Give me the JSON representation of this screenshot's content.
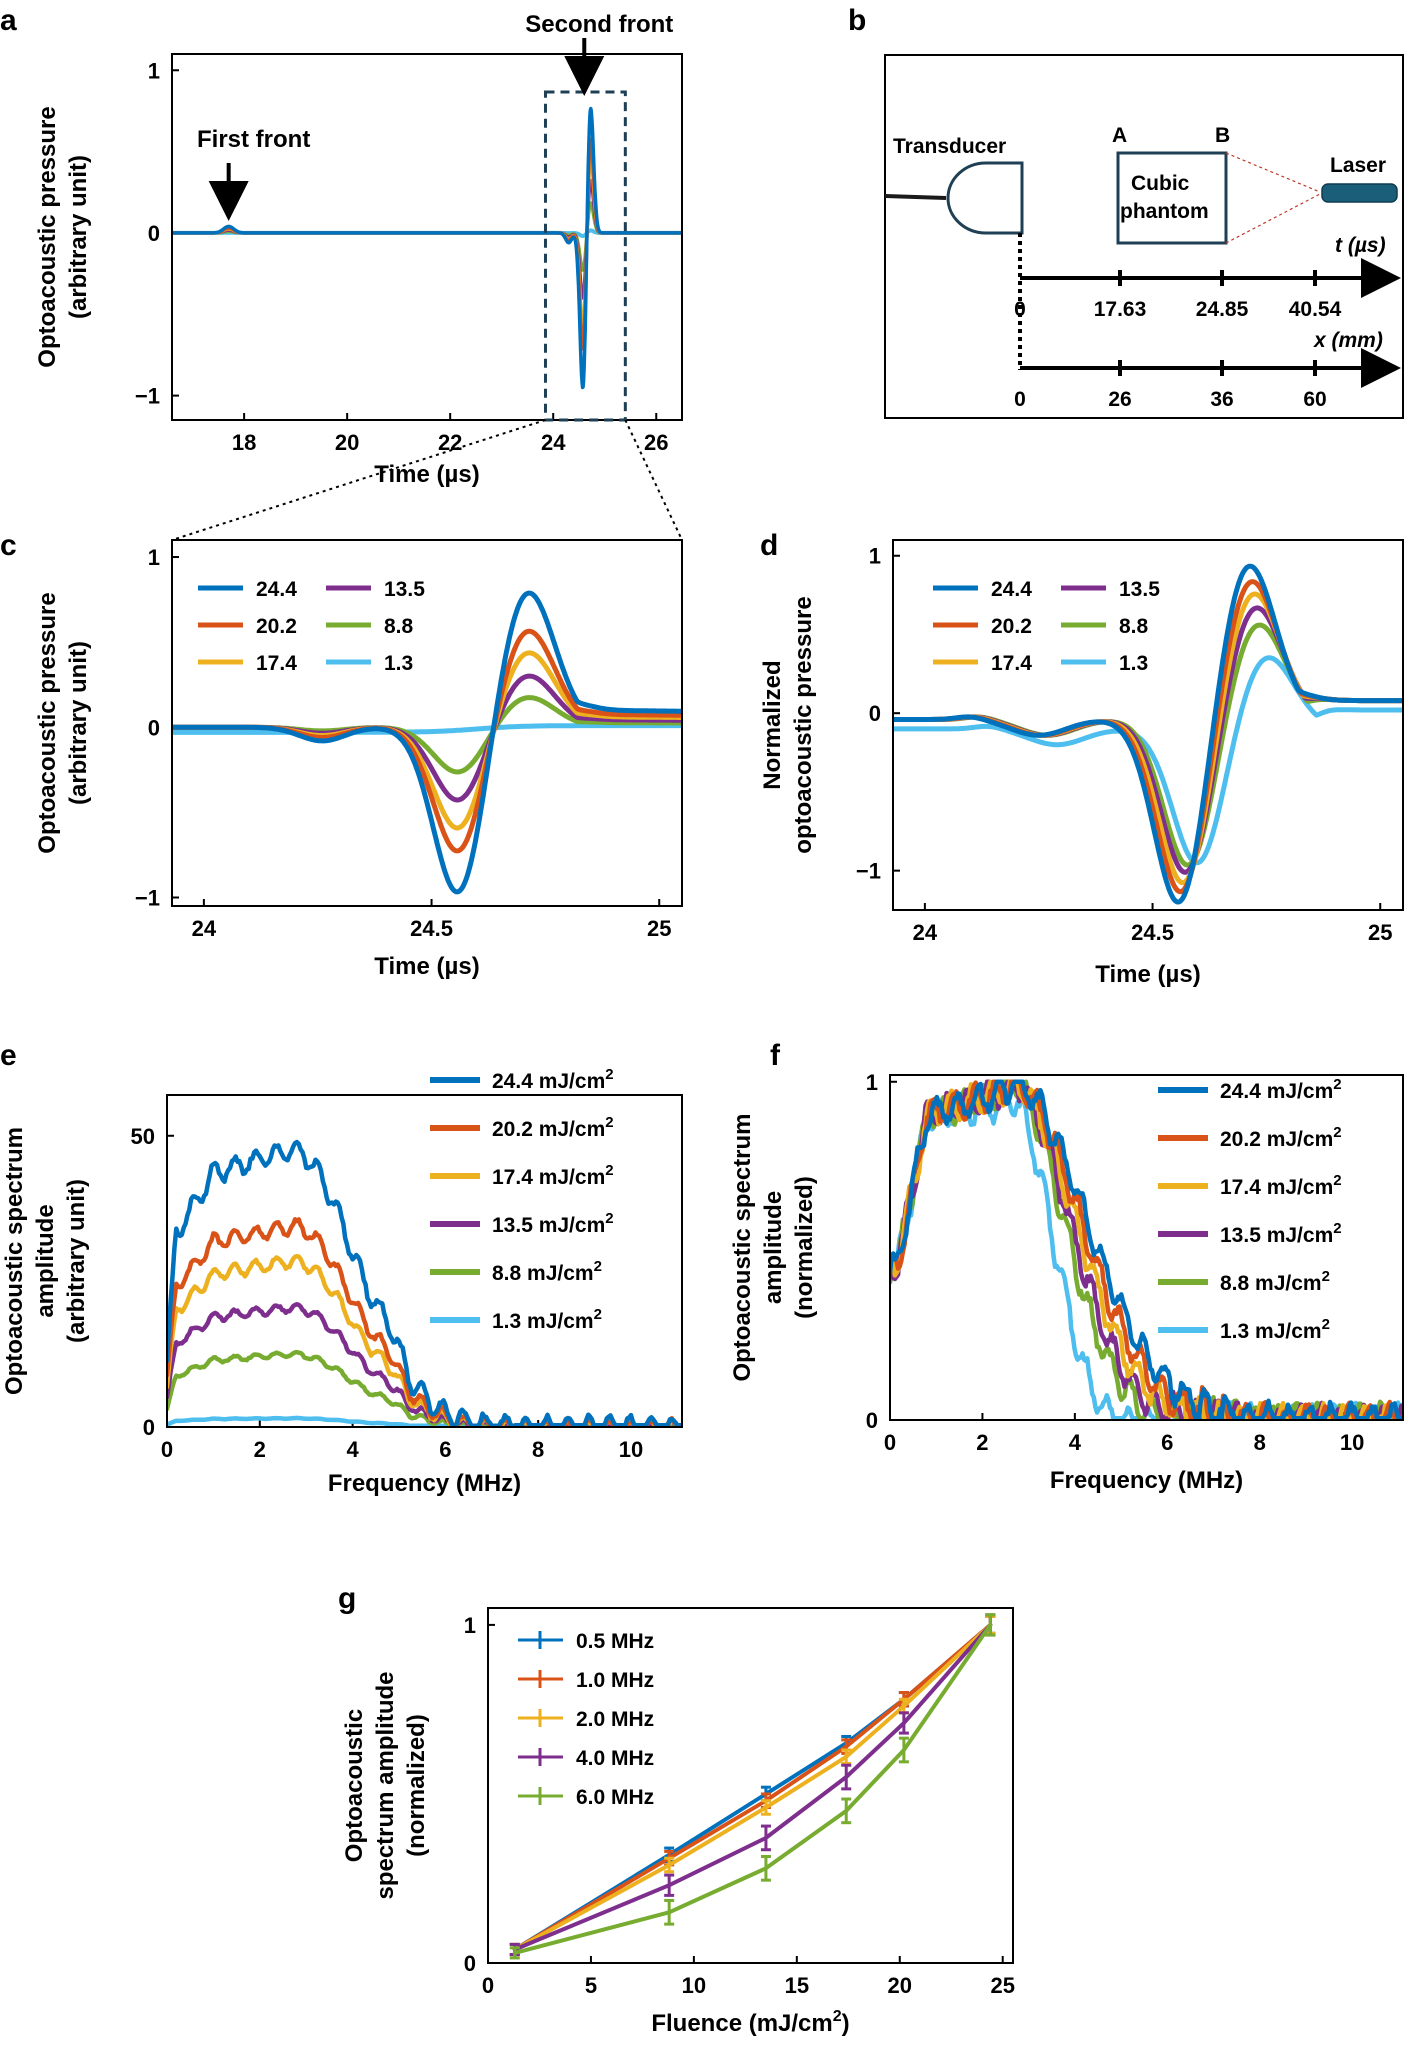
{
  "colors": {
    "c1": "#0072BD",
    "c2": "#D95319",
    "c3": "#EDB120",
    "c4": "#7E2F8E",
    "c5": "#77AC30",
    "c6": "#4DBEEE",
    "frame": "#000000",
    "inset": "#1f3f55"
  },
  "chart_data": [
    {
      "id": "a",
      "type": "line",
      "panel_label": "a",
      "xlabel": "Time (µs)",
      "ylabel_lines": [
        "Optoacoustic pressure",
        "(arbitrary unit)"
      ],
      "xlim": [
        16.6,
        26.5
      ],
      "ylim": [
        -1.15,
        1.1
      ],
      "xticks": [
        18,
        20,
        22,
        24,
        26
      ],
      "yticks": [
        {
          "v": 1,
          "label": "1"
        },
        {
          "v": 0,
          "label": "0"
        },
        {
          "v": -1,
          "label": "−1"
        }
      ],
      "annotations": [
        {
          "text": "First front",
          "x": 17.7
        },
        {
          "text": "Second front",
          "x": 24.7
        }
      ],
      "inset_x": [
        23.85,
        25.4
      ],
      "series": [
        {
          "name": "24.4",
          "amp": 1.0
        },
        {
          "name": "20.2",
          "amp": 0.75
        },
        {
          "name": "17.4",
          "amp": 0.61
        },
        {
          "name": "13.5",
          "amp": 0.42
        },
        {
          "name": "8.8",
          "amp": 0.24
        },
        {
          "name": "1.3",
          "amp": 0.02
        }
      ]
    },
    {
      "id": "c",
      "type": "line",
      "panel_label": "c",
      "xlabel": "Time (µs)",
      "ylabel_lines": [
        "Optoacoustic pressure",
        "(arbitrary unit)"
      ],
      "xlim": [
        23.93,
        25.05
      ],
      "ylim": [
        -1.05,
        1.1
      ],
      "xticks": [
        {
          "v": 24,
          "label": "24"
        },
        {
          "v": 24.5,
          "label": "24.5"
        },
        {
          "v": 25,
          "label": "25"
        }
      ],
      "yticks": [
        {
          "v": 1,
          "label": "1"
        },
        {
          "v": 0,
          "label": "0"
        },
        {
          "v": -1,
          "label": "−1"
        }
      ],
      "legend": [
        "24.4",
        "20.2",
        "17.4",
        "13.5",
        "8.8",
        "1.3"
      ],
      "series": [
        {
          "name": "24.4",
          "amp": 1.0,
          "peak": 0.81
        },
        {
          "name": "20.2",
          "amp": 0.75,
          "peak": 0.58
        },
        {
          "name": "17.4",
          "amp": 0.61,
          "peak": 0.45
        },
        {
          "name": "13.5",
          "amp": 0.44,
          "peak": 0.31
        },
        {
          "name": "8.8",
          "amp": 0.27,
          "peak": 0.18
        },
        {
          "name": "1.3",
          "amp": 0.02,
          "peak": 0.01
        }
      ]
    },
    {
      "id": "d",
      "type": "line",
      "panel_label": "d",
      "xlabel": "Time (µs)",
      "ylabel_lines": [
        "Normalized",
        "optoacoustic pressure"
      ],
      "xlim": [
        23.93,
        25.05
      ],
      "ylim": [
        -1.25,
        1.1
      ],
      "xticks": [
        {
          "v": 24,
          "label": "24"
        },
        {
          "v": 24.5,
          "label": "24.5"
        },
        {
          "v": 25,
          "label": "25"
        }
      ],
      "yticks": [
        {
          "v": 1,
          "label": "1"
        },
        {
          "v": 0,
          "label": "0"
        },
        {
          "v": -1,
          "label": "−1"
        }
      ],
      "legend": [
        "24.4",
        "20.2",
        "17.4",
        "13.5",
        "8.8",
        "1.3"
      ],
      "series": [
        {
          "name": "24.4",
          "trough": -1.2,
          "peak": 1.0,
          "shift": 0.0
        },
        {
          "name": "20.2",
          "trough": -1.13,
          "peak": 0.9,
          "shift": 0.005
        },
        {
          "name": "17.4",
          "trough": -1.07,
          "peak": 0.82,
          "shift": 0.01
        },
        {
          "name": "13.5",
          "trough": -1.0,
          "peak": 0.73,
          "shift": 0.015
        },
        {
          "name": "8.8",
          "trough": -0.95,
          "peak": 0.62,
          "shift": 0.02
        },
        {
          "name": "1.3",
          "trough": -0.87,
          "peak": 0.47,
          "shift": 0.04
        }
      ]
    },
    {
      "id": "e",
      "type": "line",
      "panel_label": "e",
      "xlabel": "Frequency (MHz)",
      "ylabel_lines": [
        "Optoacoustic spectrum",
        "amplitude",
        "(arbitrary unit)"
      ],
      "xlim": [
        0,
        11.1
      ],
      "ylim": [
        0,
        57
      ],
      "xticks": [
        0,
        2,
        4,
        6,
        8,
        10
      ],
      "yticks": [
        {
          "v": 0,
          "label": "0"
        },
        {
          "v": 50,
          "label": "50"
        }
      ],
      "legend_prefix": [
        "24.4 mJ/cm",
        "20.2 mJ/cm",
        "17.4 mJ/cm",
        "13.5 mJ/cm",
        "8.8 mJ/cm",
        "1.3 mJ/cm"
      ],
      "superscript": "2",
      "series": [
        {
          "name": "24.4 mJ/cm2",
          "peak": 47.5
        },
        {
          "name": "20.2 mJ/cm2",
          "peak": 34.5
        },
        {
          "name": "17.4 mJ/cm2",
          "peak": 28.5
        },
        {
          "name": "13.5 mJ/cm2",
          "peak": 20.5
        },
        {
          "name": "8.8 mJ/cm2",
          "peak": 12.5
        },
        {
          "name": "1.3 mJ/cm2",
          "peak": 1.5
        }
      ]
    },
    {
      "id": "f",
      "type": "line",
      "panel_label": "f",
      "xlabel": "Frequency (MHz)",
      "ylabel_lines": [
        "Optoacoustic spectrum",
        "amplitude",
        "(normalized)"
      ],
      "xlim": [
        0,
        11.1
      ],
      "ylim": [
        0,
        1.02
      ],
      "xticks": [
        0,
        2,
        4,
        6,
        8,
        10
      ],
      "yticks": [
        {
          "v": 0,
          "label": "0"
        },
        {
          "v": 1,
          "label": "1"
        }
      ],
      "legend_prefix": [
        "24.4 mJ/cm",
        "20.2 mJ/cm",
        "17.4 mJ/cm",
        "13.5 mJ/cm",
        "8.8 mJ/cm",
        "1.3 mJ/cm"
      ],
      "superscript": "2",
      "series": [
        {
          "name": "24.4 mJ/cm2",
          "cut": 5.3
        },
        {
          "name": "20.2 mJ/cm2",
          "cut": 5.1
        },
        {
          "name": "17.4 mJ/cm2",
          "cut": 4.9
        },
        {
          "name": "13.5 mJ/cm2",
          "cut": 4.7
        },
        {
          "name": "8.8 mJ/cm2",
          "cut": 4.5
        },
        {
          "name": "1.3 mJ/cm2",
          "cut": 4.1
        }
      ]
    },
    {
      "id": "g",
      "type": "line",
      "panel_label": "g",
      "xlabel_prefix": "Fluence (mJ/cm",
      "xlabel_sup": "2",
      "xlabel_suffix": ")",
      "ylabel_lines": [
        "Optoacoustic",
        "spectrum amplitude",
        "(normalized)"
      ],
      "xlim": [
        0,
        25.5
      ],
      "ylim": [
        0,
        1.05
      ],
      "xticks": [
        0,
        5,
        10,
        15,
        20,
        25
      ],
      "yticks": [
        {
          "v": 0,
          "label": "0"
        },
        {
          "v": 1,
          "label": "1"
        }
      ],
      "x": [
        1.3,
        8.8,
        13.5,
        17.4,
        20.2,
        24.4
      ],
      "series": [
        {
          "name": "0.5 MHz",
          "values": [
            0.04,
            0.32,
            0.5,
            0.65,
            0.78,
            1.0
          ],
          "err": [
            0.015,
            0.02,
            0.02,
            0.02,
            0.02,
            0.025
          ]
        },
        {
          "name": "1.0 MHz",
          "values": [
            0.04,
            0.31,
            0.48,
            0.64,
            0.78,
            1.0
          ],
          "err": [
            0.015,
            0.02,
            0.02,
            0.02,
            0.02,
            0.025
          ]
        },
        {
          "name": "2.0 MHz",
          "values": [
            0.04,
            0.29,
            0.46,
            0.61,
            0.76,
            1.0
          ],
          "err": [
            0.015,
            0.02,
            0.02,
            0.02,
            0.02,
            0.025
          ]
        },
        {
          "name": "4.0 MHz",
          "values": [
            0.04,
            0.23,
            0.37,
            0.55,
            0.71,
            1.0
          ],
          "err": [
            0.015,
            0.03,
            0.035,
            0.035,
            0.03,
            0.03
          ]
        },
        {
          "name": "6.0 MHz",
          "values": [
            0.03,
            0.15,
            0.28,
            0.45,
            0.63,
            1.0
          ],
          "err": [
            0.015,
            0.035,
            0.035,
            0.035,
            0.035,
            0.03
          ]
        }
      ]
    }
  ],
  "diagram": {
    "panel_label": "b",
    "transducer_label": "Transducer",
    "phantom_label_1": "Cubic",
    "phantom_label_2": "phantom",
    "corner_a": "A",
    "corner_b": "B",
    "laser_label": "Laser",
    "t_axis_label": "t (µs)",
    "x_axis_label": "x (mm)",
    "t_ticks": [
      "0",
      "17.63",
      "24.85",
      "40.54"
    ],
    "x_ticks": [
      "0",
      "26",
      "36",
      "60"
    ]
  }
}
